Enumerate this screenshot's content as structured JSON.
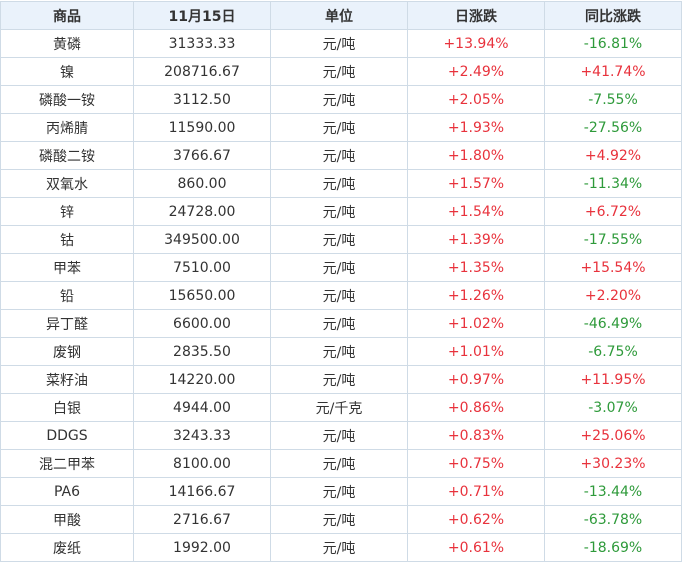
{
  "table": {
    "header": [
      "商品",
      "11月15日",
      "单位",
      "日涨跌",
      "同比涨跌"
    ],
    "rows": [
      [
        "黄磷",
        "31333.33",
        "元/吨",
        "+13.94%",
        "-16.81%"
      ],
      [
        "镍",
        "208716.67",
        "元/吨",
        "+2.49%",
        "+41.74%"
      ],
      [
        "磷酸一铵",
        "3112.50",
        "元/吨",
        "+2.05%",
        "-7.55%"
      ],
      [
        "丙烯腈",
        "11590.00",
        "元/吨",
        "+1.93%",
        "-27.56%"
      ],
      [
        "磷酸二铵",
        "3766.67",
        "元/吨",
        "+1.80%",
        "+4.92%"
      ],
      [
        "双氧水",
        "860.00",
        "元/吨",
        "+1.57%",
        "-11.34%"
      ],
      [
        "锌",
        "24728.00",
        "元/吨",
        "+1.54%",
        "+6.72%"
      ],
      [
        "钴",
        "349500.00",
        "元/吨",
        "+1.39%",
        "-17.55%"
      ],
      [
        "甲苯",
        "7510.00",
        "元/吨",
        "+1.35%",
        "+15.54%"
      ],
      [
        "铅",
        "15650.00",
        "元/吨",
        "+1.26%",
        "+2.20%"
      ],
      [
        "异丁醛",
        "6600.00",
        "元/吨",
        "+1.02%",
        "-46.49%"
      ],
      [
        "废钢",
        "2835.50",
        "元/吨",
        "+1.01%",
        "-6.75%"
      ],
      [
        "菜籽油",
        "14220.00",
        "元/吨",
        "+0.97%",
        "+11.95%"
      ],
      [
        "白银",
        "4944.00",
        "元/千克",
        "+0.86%",
        "-3.07%"
      ],
      [
        "DDGS",
        "3243.33",
        "元/吨",
        "+0.83%",
        "+25.06%"
      ],
      [
        "混二甲苯",
        "8100.00",
        "元/吨",
        "+0.75%",
        "+30.23%"
      ],
      [
        "PA6",
        "14166.67",
        "元/吨",
        "+0.71%",
        "-13.44%"
      ],
      [
        "甲酸",
        "2716.67",
        "元/吨",
        "+0.62%",
        "-63.78%"
      ],
      [
        "废纸",
        "1992.00",
        "元/吨",
        "+0.61%",
        "-18.69%"
      ]
    ]
  }
}
